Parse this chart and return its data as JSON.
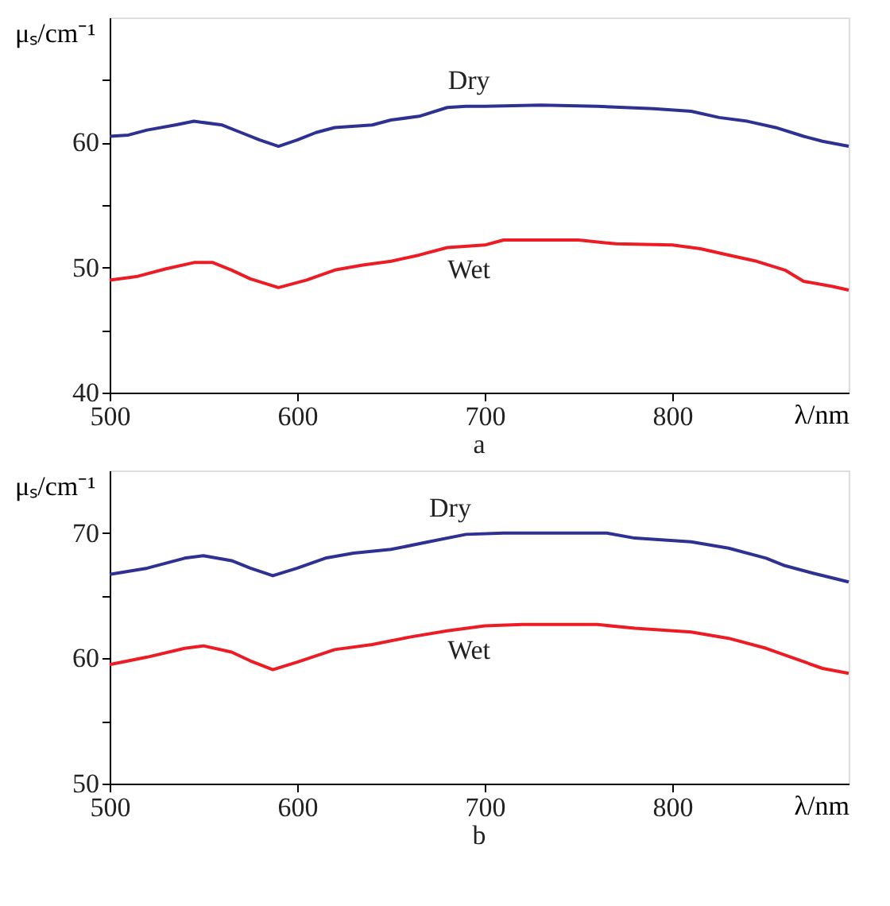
{
  "chart_data": [
    {
      "type": "line",
      "xlabel": "λ/nm",
      "ylabel": "μₛ/cm⁻¹",
      "xlim": [
        500,
        894
      ],
      "xticks": [
        500,
        600,
        700,
        800
      ],
      "ylim": [
        40,
        70
      ],
      "yticks": [
        40,
        {
          "value": 45,
          "label": null
        },
        50,
        {
          "value": 55,
          "label": null
        },
        60,
        {
          "value": 65,
          "label": null
        }
      ],
      "grid": false,
      "annotations": [
        "a"
      ],
      "series": [
        {
          "name": "Dry",
          "color": "#2e3192",
          "x": [
            500,
            510,
            520,
            535,
            545,
            560,
            570,
            580,
            590,
            600,
            610,
            620,
            640,
            650,
            665,
            680,
            690,
            700,
            730,
            760,
            790,
            810,
            825,
            840,
            855,
            870,
            880,
            894
          ],
          "values": [
            60.5,
            60.6,
            61.0,
            61.4,
            61.7,
            61.4,
            60.8,
            60.2,
            59.7,
            60.2,
            60.8,
            61.2,
            61.4,
            61.8,
            62.1,
            62.8,
            62.9,
            62.9,
            63.0,
            62.9,
            62.7,
            62.5,
            62.0,
            61.7,
            61.2,
            60.5,
            60.1,
            59.7
          ]
        },
        {
          "name": "Wet",
          "color": "#ed1c24",
          "x": [
            500,
            515,
            530,
            545,
            555,
            565,
            575,
            590,
            605,
            620,
            635,
            650,
            665,
            680,
            700,
            710,
            750,
            770,
            800,
            815,
            830,
            845,
            860,
            870,
            885,
            894
          ],
          "values": [
            49.0,
            49.3,
            49.9,
            50.4,
            50.4,
            49.8,
            49.1,
            48.4,
            49.0,
            49.8,
            50.2,
            50.5,
            51.0,
            51.6,
            51.8,
            52.2,
            52.2,
            51.9,
            51.8,
            51.5,
            51.0,
            50.5,
            49.8,
            48.9,
            48.5,
            48.2
          ]
        }
      ]
    },
    {
      "type": "line",
      "xlabel": "λ/nm",
      "ylabel": "μₛ/cm⁻¹",
      "xlim": [
        500,
        894
      ],
      "xticks": [
        500,
        600,
        700,
        800
      ],
      "ylim": [
        50,
        75
      ],
      "yticks": [
        50,
        {
          "value": 55,
          "label": null
        },
        60,
        {
          "value": 65,
          "label": null
        },
        70
      ],
      "grid": false,
      "annotations": [
        "b"
      ],
      "series": [
        {
          "name": "Dry",
          "color": "#2e3192",
          "x": [
            500,
            520,
            540,
            550,
            565,
            575,
            587,
            600,
            615,
            630,
            650,
            670,
            690,
            710,
            765,
            780,
            810,
            830,
            850,
            860,
            875,
            894
          ],
          "values": [
            66.7,
            67.2,
            68.0,
            68.2,
            67.8,
            67.2,
            66.6,
            67.2,
            68.0,
            68.4,
            68.7,
            69.3,
            69.9,
            70.0,
            70.0,
            69.6,
            69.3,
            68.8,
            68.0,
            67.4,
            66.8,
            66.1
          ]
        },
        {
          "name": "Wet",
          "color": "#ed1c24",
          "x": [
            500,
            520,
            540,
            550,
            565,
            575,
            587,
            600,
            620,
            640,
            660,
            680,
            700,
            720,
            760,
            780,
            810,
            830,
            850,
            865,
            880,
            894
          ],
          "values": [
            59.5,
            60.1,
            60.8,
            61.0,
            60.5,
            59.8,
            59.1,
            59.7,
            60.7,
            61.1,
            61.7,
            62.2,
            62.6,
            62.7,
            62.7,
            62.4,
            62.1,
            61.6,
            60.8,
            60.0,
            59.2,
            58.8
          ]
        }
      ]
    }
  ]
}
